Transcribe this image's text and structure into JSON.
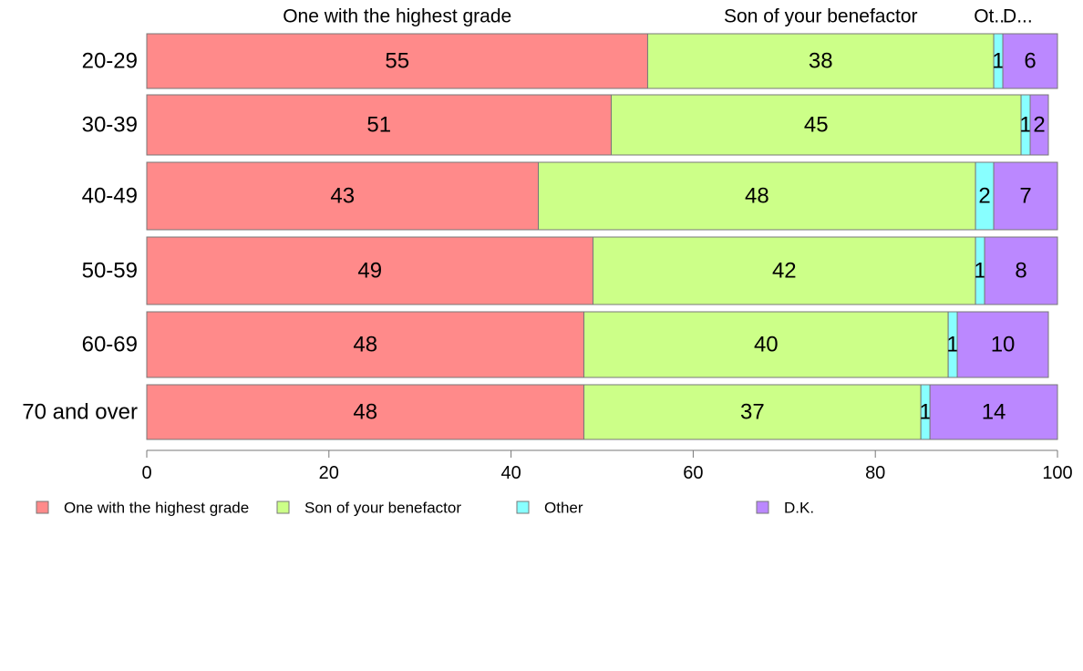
{
  "chart_data": {
    "type": "bar",
    "orientation": "horizontal",
    "stacked": true,
    "categories": [
      "20-29",
      "30-39",
      "40-49",
      "50-59",
      "60-69",
      "70 and over"
    ],
    "series": [
      {
        "name": "One with the highest grade",
        "color": "#ff8a8a",
        "values": [
          55,
          51,
          43,
          49,
          48,
          48
        ]
      },
      {
        "name": "Son of your benefactor",
        "color": "#ccff88",
        "values": [
          38,
          45,
          48,
          42,
          40,
          37
        ]
      },
      {
        "name": "Other",
        "color": "#88ffff",
        "values": [
          1,
          1,
          2,
          1,
          1,
          1
        ]
      },
      {
        "name": "D.K.",
        "color": "#bb88ff",
        "values": [
          6,
          2,
          7,
          8,
          10,
          14
        ]
      }
    ],
    "top_labels": [
      "One with the highest grade",
      "Son of your benefactor",
      "Ot..",
      "D..."
    ],
    "xlim": [
      0,
      100
    ],
    "xticks": [
      0,
      20,
      40,
      60,
      80,
      100
    ],
    "grid": false,
    "legend_position": "bottom"
  }
}
